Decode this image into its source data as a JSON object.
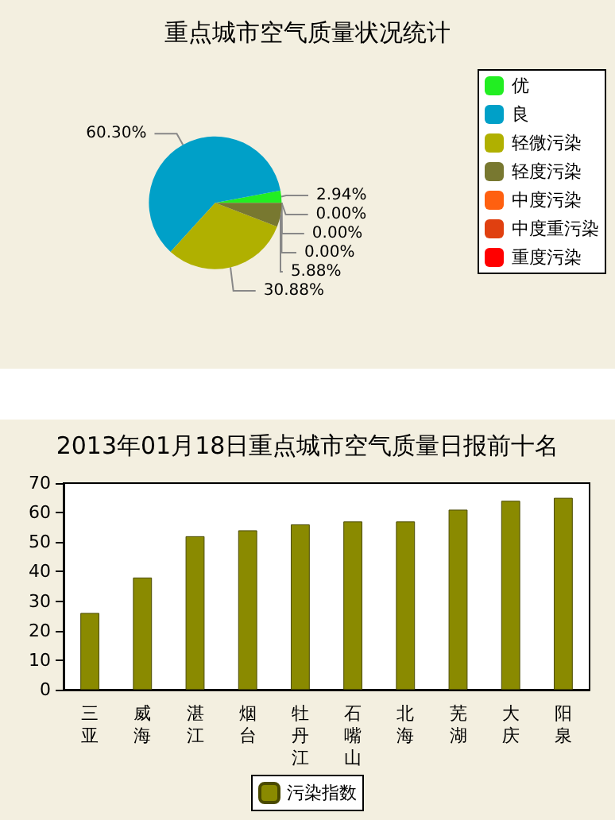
{
  "chart_data": [
    {
      "type": "pie",
      "title": "重点城市空气质量状况统计",
      "categories": [
        "优",
        "良",
        "轻微污染",
        "轻度污染",
        "中度污染",
        "中度重污染",
        "重度污染"
      ],
      "values": [
        2.94,
        60.3,
        30.88,
        5.88,
        0,
        0,
        0
      ],
      "colors": [
        "#22ee22",
        "#00a0c8",
        "#b0b000",
        "#787830",
        "#ff6010",
        "#e04010",
        "#ff0000"
      ],
      "value_labels": [
        "2.94%",
        "60.30%",
        "30.88%",
        "5.88%",
        "0.00%",
        "0.00%",
        "0.00%"
      ],
      "legend": "right"
    },
    {
      "type": "bar",
      "title": "2013年01月18日重点城市空气质量日报前十名",
      "categories": [
        "三亚",
        "威海",
        "湛江",
        "烟台",
        "牡丹江",
        "石嘴山",
        "北海",
        "芜湖",
        "大庆",
        "阳泉"
      ],
      "series": [
        {
          "name": "污染指数",
          "color": "#8a8a00",
          "values": [
            26,
            38,
            52,
            54,
            56,
            57,
            57,
            61,
            64,
            65
          ]
        }
      ],
      "ylim": [
        0,
        70
      ],
      "yticks": [
        0,
        10,
        20,
        30,
        40,
        50,
        60,
        70
      ],
      "grid": false,
      "legend": "bottom"
    }
  ]
}
